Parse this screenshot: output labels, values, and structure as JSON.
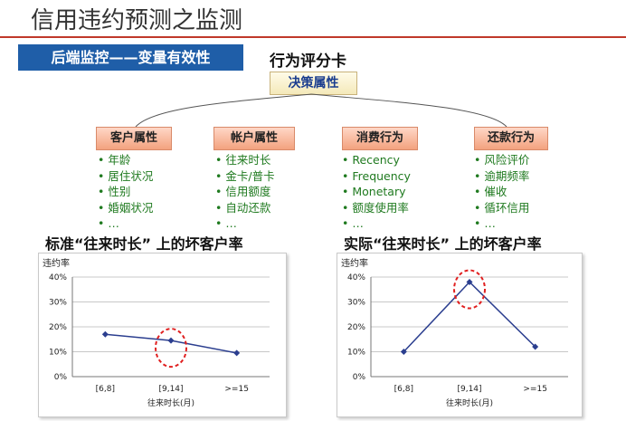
{
  "title": "信用违约预测之监测",
  "section_label": "后端监控——变量有效性",
  "card_title": "行为评分卡",
  "decision_label": "决策属性",
  "categories": [
    {
      "label": "客户属性",
      "items": [
        "年龄",
        "居住状况",
        "性别",
        "婚姻状况",
        "…"
      ]
    },
    {
      "label": "帐户属性",
      "items": [
        "往来时长",
        "金卡/普卡",
        "信用额度",
        "自动还款",
        "…"
      ]
    },
    {
      "label": "消费行为",
      "items": [
        "Recency",
        "Frequency",
        "Monetary",
        "额度使用率",
        "…"
      ]
    },
    {
      "label": "还款行为",
      "items": [
        "风险评价",
        "逾期频率",
        "催收",
        "循环信用",
        "…"
      ]
    }
  ],
  "left_subtitle": "标准“往来时长” 上的坏客户率",
  "right_subtitle": "实际“往来时长” 上的坏客户率",
  "colors": {
    "line": "#2b3e8f",
    "highlight": "#e02020",
    "bar": "#1f5ea8"
  },
  "chart_data": [
    {
      "type": "line",
      "ylabel": "违约率",
      "xlabel": "往来时长(月)",
      "categories": [
        "[6,8]",
        "[9,14]",
        ">=15"
      ],
      "yticks": [
        "40%",
        "30%",
        "20%",
        "10%",
        "0%"
      ],
      "ylim": [
        0,
        40
      ],
      "series": [
        {
          "values": [
            17,
            14.5,
            9.5
          ]
        }
      ],
      "grid": true,
      "highlight_index": 1
    },
    {
      "type": "line",
      "ylabel": "违约率",
      "xlabel": "往来时长(月)",
      "categories": [
        "[6,8]",
        "[9,14]",
        ">=15"
      ],
      "yticks": [
        "40%",
        "30%",
        "20%",
        "10%",
        "0%"
      ],
      "ylim": [
        0,
        40
      ],
      "series": [
        {
          "values": [
            10,
            38,
            12
          ]
        }
      ],
      "grid": true,
      "highlight_index": 1
    }
  ]
}
